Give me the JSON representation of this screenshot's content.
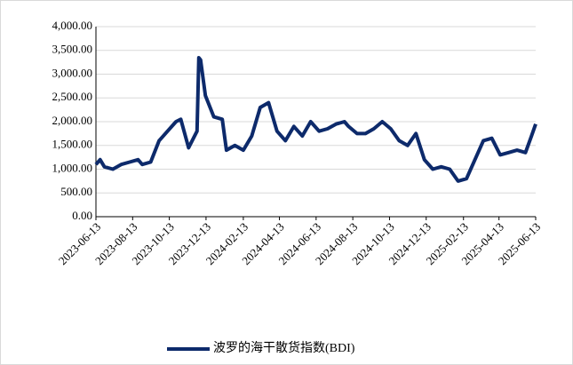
{
  "chart_data": {
    "type": "line",
    "x": [
      "2023-06-13",
      "2023-06-20",
      "2023-06-27",
      "2023-07-11",
      "2023-07-25",
      "2023-08-08",
      "2023-08-22",
      "2023-08-29",
      "2023-09-12",
      "2023-09-26",
      "2023-10-10",
      "2023-10-24",
      "2023-11-01",
      "2023-11-14",
      "2023-11-28",
      "2023-12-01",
      "2023-12-04",
      "2023-12-12",
      "2023-12-26",
      "2024-01-09",
      "2024-01-16",
      "2024-01-30",
      "2024-02-13",
      "2024-02-27",
      "2024-03-12",
      "2024-03-26",
      "2024-04-09",
      "2024-04-23",
      "2024-05-07",
      "2024-05-21",
      "2024-06-04",
      "2024-06-18",
      "2024-07-02",
      "2024-07-16",
      "2024-07-30",
      "2024-08-06",
      "2024-08-20",
      "2024-09-03",
      "2024-09-17",
      "2024-10-01",
      "2024-10-15",
      "2024-10-29",
      "2024-11-12",
      "2024-11-26",
      "2024-12-10",
      "2024-12-24",
      "2025-01-07",
      "2025-01-21",
      "2025-02-04",
      "2025-02-18",
      "2025-03-04",
      "2025-03-18",
      "2025-04-01",
      "2025-04-15",
      "2025-04-29",
      "2025-05-13",
      "2025-05-27",
      "2025-06-06",
      "2025-06-13"
    ],
    "series": [
      {
        "name": "波罗的海干散货指数(BDI)",
        "color": "#0d2a6b",
        "values": [
          1100,
          1200,
          1050,
          1000,
          1100,
          1150,
          1200,
          1100,
          1150,
          1600,
          1800,
          2000,
          2050,
          1450,
          1800,
          3346,
          3300,
          2550,
          2100,
          2050,
          1400,
          1500,
          1400,
          1700,
          2300,
          2400,
          1800,
          1600,
          1900,
          1700,
          2000,
          1800,
          1850,
          1950,
          2000,
          1900,
          1750,
          1750,
          1850,
          2000,
          1850,
          1600,
          1500,
          1750,
          1200,
          1000,
          1050,
          1000,
          750,
          800,
          1200,
          1600,
          1650,
          1300,
          1350,
          1400,
          1350,
          1700,
          1950
        ]
      }
    ],
    "xlim": [
      "2023-06-13",
      "2025-06-13"
    ],
    "xticks": [
      "2023-06-13",
      "2023-08-13",
      "2023-10-13",
      "2023-12-13",
      "2024-02-13",
      "2024-04-13",
      "2024-06-13",
      "2024-08-13",
      "2024-10-13",
      "2024-12-13",
      "2025-02-13",
      "2025-04-13",
      "2025-06-13"
    ],
    "ylim": [
      0,
      4000
    ],
    "yticks": [
      {
        "value": 0,
        "label": "0.00"
      },
      {
        "value": 500,
        "label": "500.00"
      },
      {
        "value": 1000,
        "label": "1,000.00"
      },
      {
        "value": 1500,
        "label": "1,500.00"
      },
      {
        "value": 2000,
        "label": "2,000.00"
      },
      {
        "value": 2500,
        "label": "2,500.00"
      },
      {
        "value": 3000,
        "label": "3,000.00"
      },
      {
        "value": 3500,
        "label": "3,500.00"
      },
      {
        "value": 4000,
        "label": "4,000.00"
      }
    ],
    "grid": true
  }
}
